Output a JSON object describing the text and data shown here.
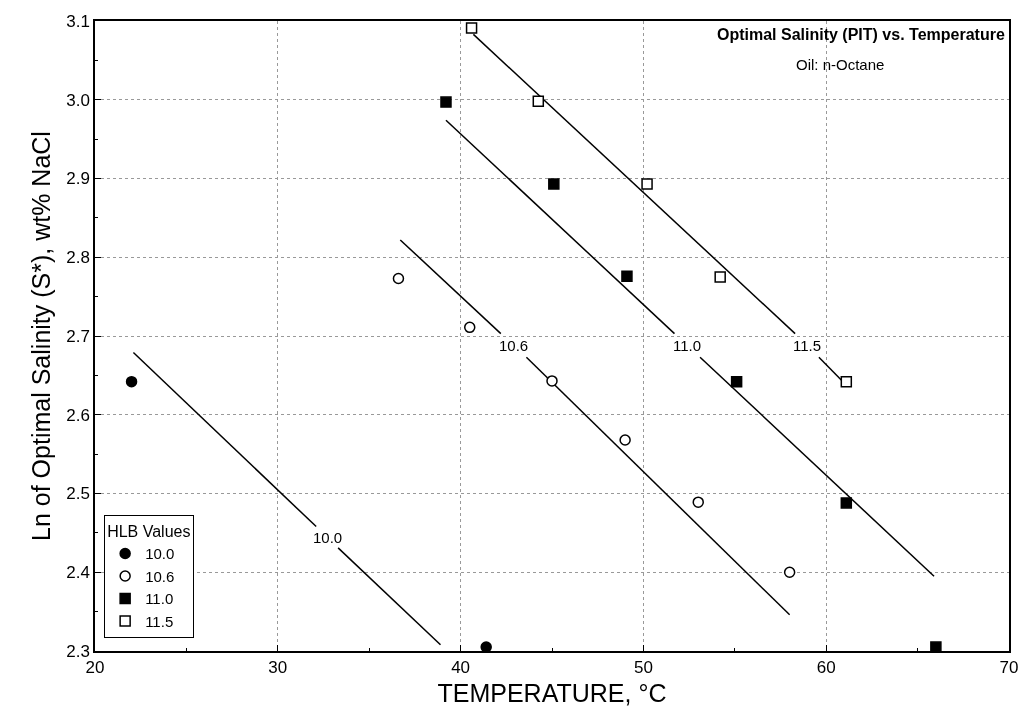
{
  "chart_data": {
    "type": "scatter",
    "title": "Optimal Salinity (PIT) vs. Temperature",
    "subtitle": "Oil: n-Octane",
    "xlabel": "TEMPERATURE, °C",
    "ylabel": "Ln of Optimal Salinity (S*), wt% NaCl",
    "legend_title": "HLB Values",
    "xlim": [
      20,
      70
    ],
    "xticks": [
      20,
      30,
      40,
      50,
      60,
      70
    ],
    "ylim": [
      2.3,
      3.1
    ],
    "yticks": [
      2.3,
      2.4,
      2.5,
      2.6,
      2.7,
      2.8,
      2.9,
      {
        "value": 3,
        "label": "3.0"
      },
      3.1
    ],
    "grid": true,
    "legend": "bottom left",
    "series": [
      {
        "name": "10.0",
        "color": "#000000",
        "marker": "circle",
        "x": [
          22.0,
          41.4
        ],
        "values": [
          2.642,
          2.305
        ]
      },
      {
        "name": "10.6",
        "color": "#ffffff",
        "marker": "circle",
        "x": [
          36.6,
          40.5,
          45.0,
          49.0,
          53.0,
          58.0
        ],
        "values": [
          2.773,
          2.711,
          2.643,
          2.568,
          2.489,
          2.4
        ]
      },
      {
        "name": "11.0",
        "color": "#000000",
        "marker": "square",
        "x": [
          39.2,
          45.1,
          49.1,
          55.1,
          61.1,
          66.0
        ],
        "values": [
          2.997,
          2.893,
          2.776,
          2.642,
          2.488,
          2.305
        ]
      },
      {
        "name": "11.5",
        "color": "#ffffff",
        "marker": "square",
        "x": [
          40.6,
          44.25,
          50.2,
          54.2,
          61.1
        ],
        "values": [
          3.091,
          2.998,
          2.893,
          2.775,
          2.642
        ]
      },
      {
        "type": "line",
        "name": "10.0",
        "color": "#000000",
        "x": [
          22.1,
          32.1,
          32.7,
          33.3,
          38.9
        ],
        "values": [
          2.679,
          2.458,
          null,
          2.431,
          2.308
        ]
      },
      {
        "type": "line",
        "name": "10.6",
        "color": "#000000",
        "x": [
          36.7,
          42.2,
          42.9,
          43.6,
          58.0
        ],
        "values": [
          2.822,
          2.703,
          null,
          2.673,
          2.346
        ]
      },
      {
        "type": "line",
        "name": "11.0",
        "color": "#000000",
        "x": [
          39.2,
          51.7,
          52.4,
          53.1,
          65.9
        ],
        "values": [
          2.974,
          2.703,
          null,
          2.673,
          2.395
        ]
      },
      {
        "type": "line",
        "name": "11.5",
        "color": "#000000",
        "x": [
          40.7,
          58.3,
          58.95,
          59.6,
          61.0
        ],
        "values": [
          3.083,
          2.703,
          null,
          2.673,
          2.64
        ]
      }
    ]
  }
}
